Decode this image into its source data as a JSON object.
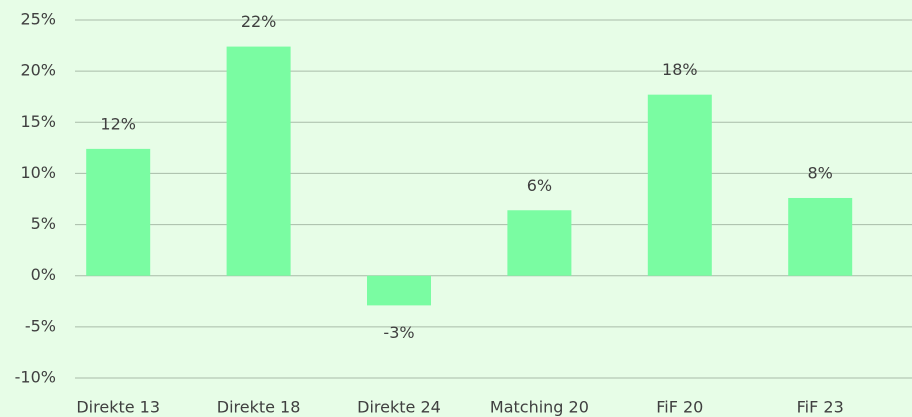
{
  "chart_data": {
    "type": "bar",
    "categories": [
      "Direkte 13",
      "Direkte 18",
      "Direkte 24",
      "Matching 20",
      "FiF 20",
      "FiF 23"
    ],
    "values": [
      12.4,
      22.4,
      -2.9,
      6.4,
      17.7,
      7.6
    ],
    "value_labels": [
      "12%",
      "22%",
      "-3%",
      "6%",
      "18%",
      "8%"
    ],
    "color": "#7afca2",
    "ylim": [
      -10,
      25
    ],
    "yticks": [
      {
        "value": -10,
        "label": "-10%"
      },
      {
        "value": -5,
        "label": "-5%"
      },
      {
        "value": 0,
        "label": "0%"
      },
      {
        "value": 5,
        "label": "5%"
      },
      {
        "value": 10,
        "label": "10%"
      },
      {
        "value": 15,
        "label": "15%"
      },
      {
        "value": 20,
        "label": "20%"
      },
      {
        "value": 25,
        "label": "25%"
      }
    ],
    "grid": true
  }
}
